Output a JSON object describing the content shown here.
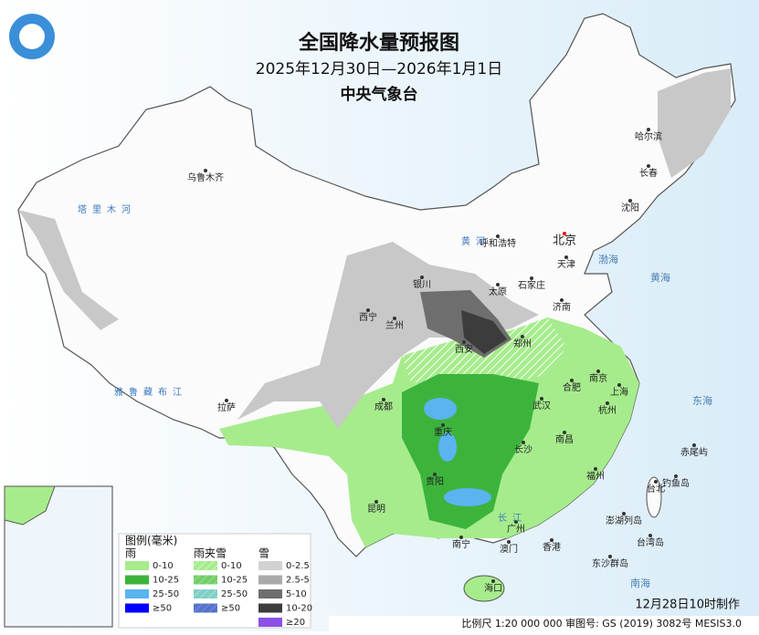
{
  "header": {
    "title": "全国降水量预报图",
    "date_range": "2025年12月30日—2026年1月1日",
    "issuer": "中央气象台"
  },
  "legend": {
    "title": "图例(毫米)",
    "columns": [
      {
        "name": "雨",
        "items": [
          {
            "label": "0-10",
            "color": "#a6ec8c"
          },
          {
            "label": "10-25",
            "color": "#3cb43c"
          },
          {
            "label": "25-50",
            "color": "#5ab4f0"
          },
          {
            "label": "≥50",
            "color": "#0000fe"
          }
        ]
      },
      {
        "name": "雨夹雪",
        "items": [
          {
            "label": "0-10",
            "color": "#a6ec8c"
          },
          {
            "label": "10-25",
            "color": "#3cb43c"
          },
          {
            "label": "25-50",
            "color": "#5ab4f0"
          },
          {
            "label": "≥50",
            "color": "#0000fe"
          }
        ]
      },
      {
        "name": "雪",
        "items": [
          {
            "label": "0-2.5",
            "color": "#d2d2d2"
          },
          {
            "label": "2.5-5",
            "color": "#aaaaaa"
          },
          {
            "label": "5-10",
            "color": "#6e6e6e"
          },
          {
            "label": "10-20",
            "color": "#3c3c3c"
          },
          {
            "label": "≥20",
            "color": "#8c50e6"
          }
        ]
      }
    ]
  },
  "cities": [
    "乌鲁木齐",
    "哈尔滨",
    "长春",
    "沈阳",
    "北京",
    "天津",
    "呼和浩特",
    "石家庄",
    "太原",
    "济南",
    "银川",
    "西宁",
    "兰州",
    "西安",
    "郑州",
    "合肥",
    "南京",
    "上海",
    "武汉",
    "杭州",
    "成都",
    "重庆",
    "长沙",
    "南昌",
    "福州",
    "贵阳",
    "昆明",
    "拉萨",
    "南宁",
    "广州",
    "澳门",
    "香港",
    "海口",
    "台北",
    "钓鱼岛",
    "赤尾屿",
    "澎湖列岛",
    "台湾岛",
    "东沙群岛"
  ],
  "seas": [
    "渤海",
    "黄海",
    "东海",
    "南海"
  ],
  "rivers": [
    "塔里木河",
    "雅鲁藏布江",
    "黄河",
    "长江"
  ],
  "footer": {
    "made": "12月28日10时制作",
    "scale": "比例尺 1:20 000 000  审图号: GS (2019) 3082号  MESIS3.0"
  }
}
